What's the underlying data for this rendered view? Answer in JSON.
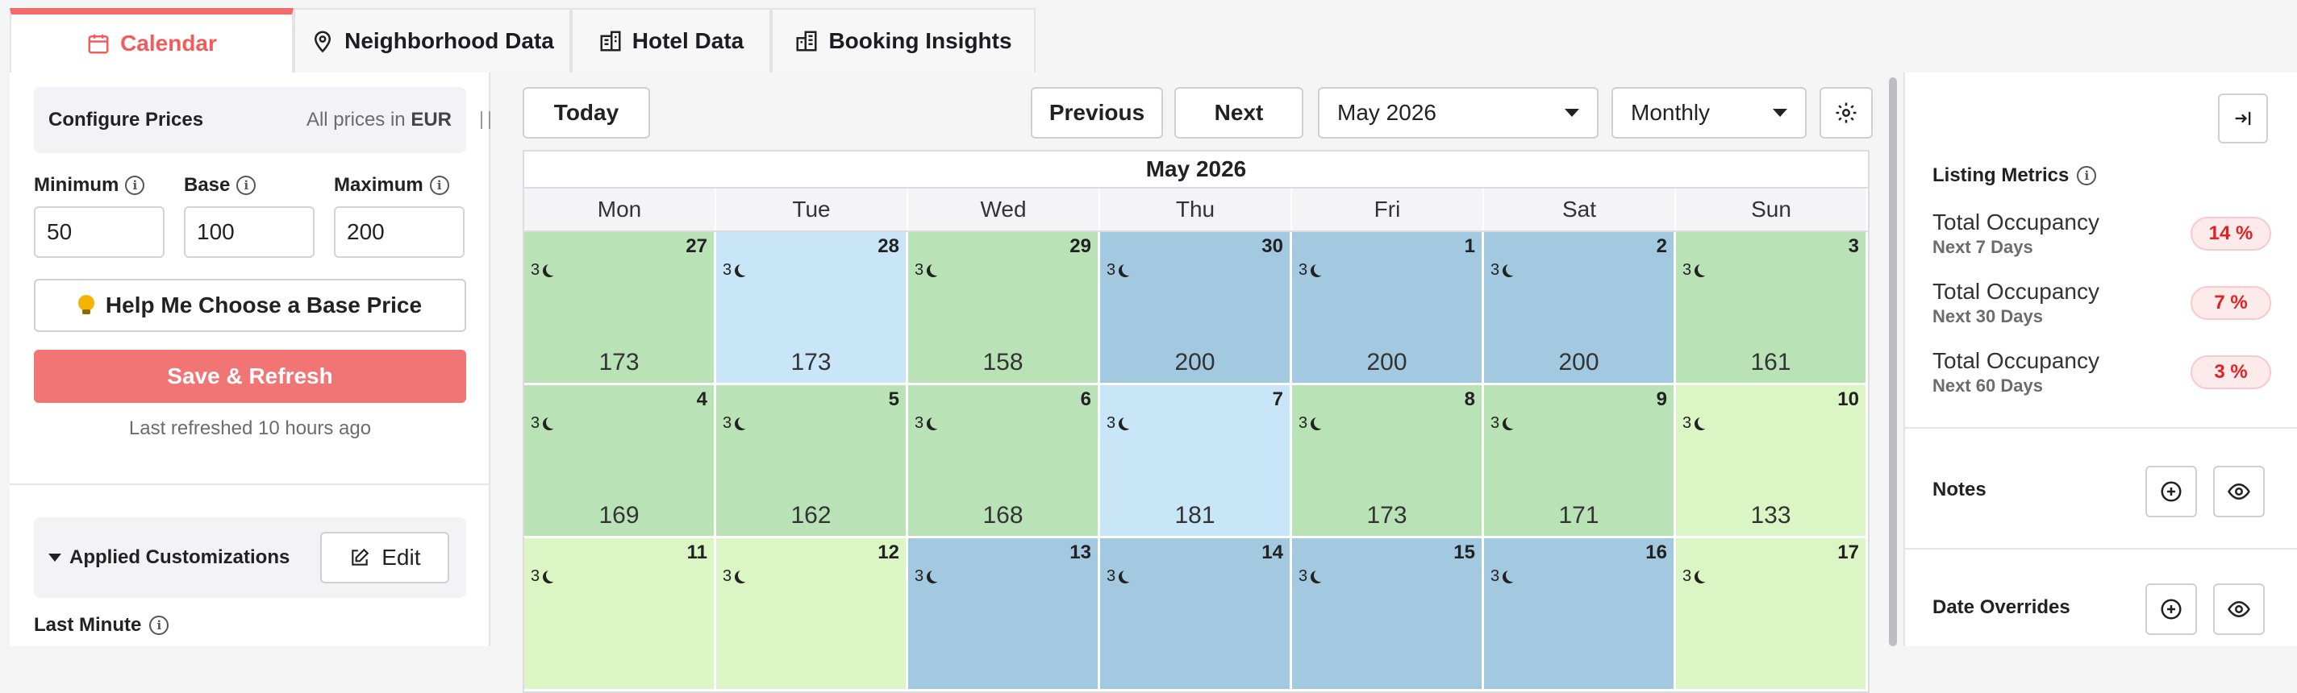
{
  "tabs": [
    {
      "label": "Calendar",
      "icon": "calendar-icon",
      "active": true
    },
    {
      "label": "Neighborhood Data",
      "icon": "map-pin-icon",
      "active": false
    },
    {
      "label": "Hotel Data",
      "icon": "hotel-icon",
      "active": false
    },
    {
      "label": "Booking Insights",
      "icon": "building-icon",
      "active": false
    }
  ],
  "configure": {
    "title": "Configure Prices",
    "note_prefix": "All prices in",
    "currency": "EUR",
    "min_label": "Minimum",
    "base_label": "Base",
    "max_label": "Maximum",
    "min_value": "50",
    "base_value": "100",
    "max_value": "200",
    "help_label": "Help Me Choose a Base Price",
    "save_label": "Save & Refresh",
    "refreshed": "Last refreshed 10 hours ago"
  },
  "customizations": {
    "title": "Applied Customizations",
    "edit_label": "Edit",
    "last_minute": "Last Minute"
  },
  "toolbar": {
    "today": "Today",
    "previous": "Previous",
    "next": "Next",
    "month_select": "May 2026",
    "view_select": "Monthly"
  },
  "calendar": {
    "title": "May 2026",
    "days_of_week": [
      "Mon",
      "Tue",
      "Wed",
      "Thu",
      "Fri",
      "Sat",
      "Sun"
    ],
    "colors": {
      "green": "#b9e3b7",
      "lightblue": "#c8e6f7",
      "blue": "#a3c9e0",
      "lime": "#dcf5c4"
    },
    "weeks": [
      [
        {
          "day": "27",
          "nights": "3",
          "price": "173",
          "color": "green"
        },
        {
          "day": "28",
          "nights": "3",
          "price": "173",
          "color": "lightblue"
        },
        {
          "day": "29",
          "nights": "3",
          "price": "158",
          "color": "green"
        },
        {
          "day": "30",
          "nights": "3",
          "price": "200",
          "color": "blue"
        },
        {
          "day": "1",
          "nights": "3",
          "price": "200",
          "color": "blue"
        },
        {
          "day": "2",
          "nights": "3",
          "price": "200",
          "color": "blue"
        },
        {
          "day": "3",
          "nights": "3",
          "price": "161",
          "color": "green"
        }
      ],
      [
        {
          "day": "4",
          "nights": "3",
          "price": "169",
          "color": "green"
        },
        {
          "day": "5",
          "nights": "3",
          "price": "162",
          "color": "green"
        },
        {
          "day": "6",
          "nights": "3",
          "price": "168",
          "color": "green"
        },
        {
          "day": "7",
          "nights": "3",
          "price": "181",
          "color": "lightblue"
        },
        {
          "day": "8",
          "nights": "3",
          "price": "173",
          "color": "green"
        },
        {
          "day": "9",
          "nights": "3",
          "price": "171",
          "color": "green"
        },
        {
          "day": "10",
          "nights": "3",
          "price": "133",
          "color": "lime"
        }
      ],
      [
        {
          "day": "11",
          "nights": "3",
          "price": "",
          "color": "lime"
        },
        {
          "day": "12",
          "nights": "3",
          "price": "",
          "color": "lime"
        },
        {
          "day": "13",
          "nights": "3",
          "price": "",
          "color": "blue"
        },
        {
          "day": "14",
          "nights": "3",
          "price": "",
          "color": "blue"
        },
        {
          "day": "15",
          "nights": "3",
          "price": "",
          "color": "blue"
        },
        {
          "day": "16",
          "nights": "3",
          "price": "",
          "color": "blue"
        },
        {
          "day": "17",
          "nights": "3",
          "price": "",
          "color": "lime"
        }
      ]
    ]
  },
  "metrics": {
    "title": "Listing Metrics",
    "items": [
      {
        "name": "Total Occupancy",
        "period": "Next 7 Days",
        "value": "14 %"
      },
      {
        "name": "Total Occupancy",
        "period": "Next 30 Days",
        "value": "7 %"
      },
      {
        "name": "Total Occupancy",
        "period": "Next 60 Days",
        "value": "3 %"
      }
    ]
  },
  "notes": {
    "title": "Notes"
  },
  "overrides": {
    "title": "Date Overrides"
  }
}
